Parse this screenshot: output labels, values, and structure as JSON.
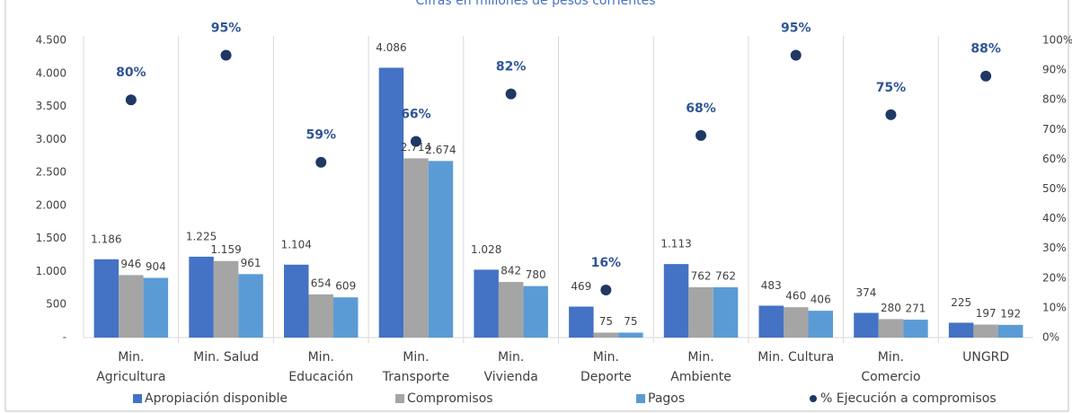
{
  "chart_data": {
    "type": "bar",
    "title": "Cifras en millones de pesos corrientes",
    "categories": [
      [
        "Min.",
        "Agricultura"
      ],
      [
        "Min. Salud"
      ],
      [
        "Min.",
        "Educación"
      ],
      [
        "Min.",
        "Transporte"
      ],
      [
        "Min.",
        "Vivienda"
      ],
      [
        "Min.",
        "Deporte"
      ],
      [
        "Min.",
        "Ambiente"
      ],
      [
        "Min. Cultura"
      ],
      [
        "Min.",
        "Comercio"
      ],
      [
        "UNGRD"
      ]
    ],
    "series": [
      {
        "name": "Apropiación disponible",
        "color": "#4472c4",
        "values": [
          1186,
          1225,
          1104,
          4086,
          1028,
          469,
          1113,
          483,
          374,
          225
        ],
        "value_labels": [
          "1.186",
          "1.225",
          "1.104",
          "4.086",
          "1.028",
          "469",
          "1.113",
          "483",
          "374",
          "225"
        ]
      },
      {
        "name": "Compromisos",
        "color": "#a5a5a5",
        "values": [
          946,
          1159,
          654,
          2714,
          842,
          75,
          762,
          460,
          280,
          197
        ],
        "value_labels": [
          "946",
          "1.159",
          "654",
          "2.714",
          "842",
          "75",
          "762",
          "460",
          "280",
          "197"
        ]
      },
      {
        "name": "Pagos",
        "color": "#5b9bd5",
        "values": [
          904,
          961,
          609,
          2674,
          780,
          75,
          762,
          406,
          271,
          192
        ],
        "value_labels": [
          "904",
          "961",
          "609",
          "2.674",
          "780",
          "75",
          "762",
          "406",
          "271",
          "192"
        ]
      },
      {
        "name": "% Ejecución a compromisos",
        "type": "scatter",
        "axis": "y2",
        "color": "#1f3864",
        "values": [
          80,
          95,
          59,
          66,
          82,
          16,
          68,
          95,
          75,
          88
        ],
        "value_labels": [
          "80%",
          "95%",
          "59%",
          "66%",
          "82%",
          "16%",
          "68%",
          "95%",
          "75%",
          "88%"
        ]
      }
    ],
    "ylim": [
      0,
      4500
    ],
    "yticks": [
      {
        "value": 0,
        "label": "-"
      },
      500,
      {
        "value": 1000,
        "label": "1.000"
      },
      {
        "value": 1500,
        "label": "1.500"
      },
      {
        "value": 2000,
        "label": "2.000"
      },
      {
        "value": 2500,
        "label": "2.500"
      },
      {
        "value": 3000,
        "label": "3.000"
      },
      {
        "value": 3500,
        "label": "3.500"
      },
      {
        "value": 4000,
        "label": "4.000"
      },
      {
        "value": 4500,
        "label": "4.500"
      }
    ],
    "y2lim": [
      0,
      100
    ],
    "y2ticks": [
      {
        "value": 0,
        "label": "0%"
      },
      {
        "value": 10,
        "label": "10%"
      },
      {
        "value": 20,
        "label": "20%"
      },
      {
        "value": 30,
        "label": "30%"
      },
      {
        "value": 40,
        "label": "40%"
      },
      {
        "value": 50,
        "label": "50%"
      },
      {
        "value": 60,
        "label": "60%"
      },
      {
        "value": 70,
        "label": "70%"
      },
      {
        "value": 80,
        "label": "80%"
      },
      {
        "value": 90,
        "label": "90%"
      },
      {
        "value": 100,
        "label": "100%"
      }
    ],
    "legend": "bottom"
  }
}
